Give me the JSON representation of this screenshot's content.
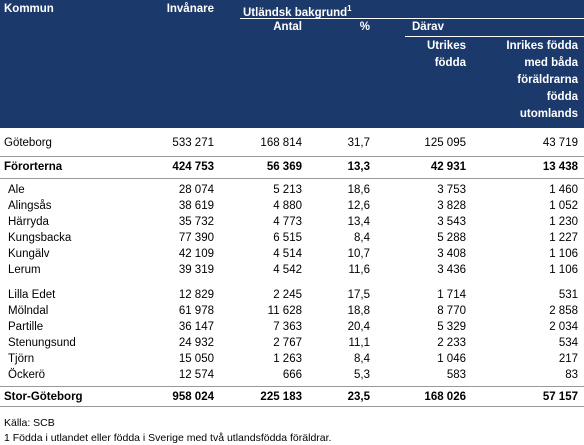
{
  "header": {
    "kommun": "Kommun",
    "invanare": "Invånare",
    "utlandsk": "Utländsk bakgrund",
    "footnote_ref": "1",
    "antal": "Antal",
    "procent": "%",
    "darav": "Därav",
    "utrikes": [
      "Utrikes",
      "födda"
    ],
    "inrikes": [
      "Inrikes födda",
      "med båda",
      "föräldrarna",
      "födda",
      "utomlands"
    ]
  },
  "rows": [
    [
      "Göteborg",
      "533 271",
      "168 814",
      "31,7",
      "125 095",
      "43 719"
    ],
    [
      "Förorterna",
      "424 753",
      "56 369",
      "13,3",
      "42 931",
      "13 438"
    ],
    [
      "Ale",
      "28 074",
      "5 213",
      "18,6",
      "3 753",
      "1 460"
    ],
    [
      "Alingsås",
      "38 619",
      "4 880",
      "12,6",
      "3 828",
      "1 052"
    ],
    [
      "Härryda",
      "35 732",
      "4 773",
      "13,4",
      "3 543",
      "1 230"
    ],
    [
      "Kungsbacka",
      "77 390",
      "6 515",
      "8,4",
      "5 288",
      "1 227"
    ],
    [
      "Kungälv",
      "42 109",
      "4 514",
      "10,7",
      "3 408",
      "1 106"
    ],
    [
      "Lerum",
      "39 319",
      "4 542",
      "11,6",
      "3 436",
      "1 106"
    ],
    [
      "Lilla Edet",
      "12 829",
      "2 245",
      "17,5",
      "1 714",
      "531"
    ],
    [
      "Mölndal",
      "61 978",
      "11 628",
      "18,8",
      "8 770",
      "2 858"
    ],
    [
      "Partille",
      "36 147",
      "7 363",
      "20,4",
      "5 329",
      "2 034"
    ],
    [
      "Stenungsund",
      "24 932",
      "2 767",
      "11,1",
      "2 233",
      "534"
    ],
    [
      "Tjörn",
      "15 050",
      "1 263",
      "8,4",
      "1 046",
      "217"
    ],
    [
      "Öckerö",
      "12 574",
      "666",
      "5,3",
      "583",
      "83"
    ],
    [
      "Stor-Göteborg",
      "958 024",
      "225 183",
      "23,5",
      "168 026",
      "57 157"
    ]
  ],
  "footer": {
    "source": "Källa:  SCB",
    "note": "1  Födda i utlandet eller födda i Sverige med två utlandsfödda föräldrar."
  }
}
